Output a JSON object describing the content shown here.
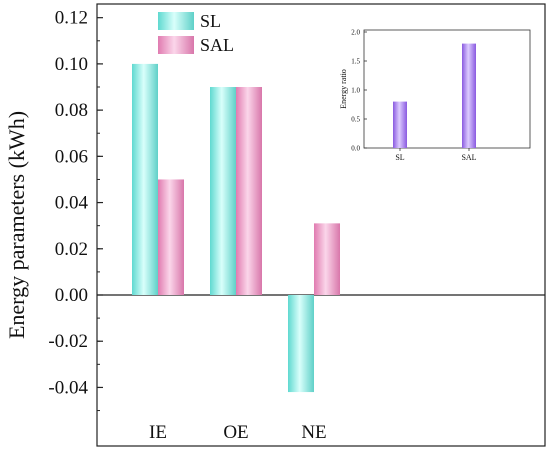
{
  "chart_data": [
    {
      "type": "bar",
      "categories": [
        "IE",
        "OE",
        "NE"
      ],
      "series": [
        {
          "name": "SL",
          "values": [
            0.1,
            0.09,
            -0.042
          ],
          "color": "#7fe6de"
        },
        {
          "name": "SAL",
          "values": [
            0.05,
            0.09,
            0.031
          ],
          "color": "#e98bbb"
        }
      ],
      "ylabel": "Energy parameters (kWh)",
      "ylim": [
        -0.055,
        0.125
      ],
      "yticks": [
        "0.12",
        "0.10",
        "0.08",
        "0.06",
        "0.04",
        "0.02",
        "0.00",
        "-0.02",
        "-0.04"
      ],
      "legend": "top-center",
      "grid": false
    },
    {
      "type": "bar",
      "categories": [
        "SL",
        "SAL"
      ],
      "series": [
        {
          "values": [
            0.8,
            1.8
          ],
          "color": "#9b6ee6"
        }
      ],
      "ylabel": "Energy ratio",
      "ylim": [
        0,
        2.0
      ],
      "yticks": [
        "2.0",
        "1.5",
        "1.0",
        "0.5",
        "0.0"
      ],
      "legend": "none",
      "grid": false
    }
  ]
}
